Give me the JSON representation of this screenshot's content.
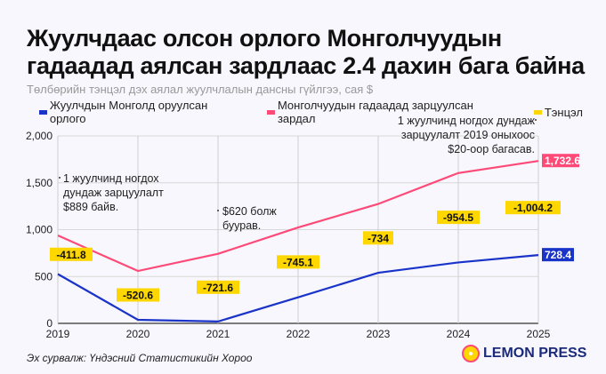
{
  "title": "Жуулчдаас олсон орлого Монголчуудын гадаадад аялсан зардлаас 2.4 дахин бага байна",
  "subtitle": "Төлбөрийн тэнцэл дэх аялал жуулчлалын дансны гүйлгээ, сая $",
  "source": "Эх сурвалж: Үндэсний Статистикийн Хороо",
  "logo": "LEMON PRESS",
  "chart_data": {
    "type": "line",
    "x": [
      "2019",
      "2020",
      "2021",
      "2022",
      "2023",
      "2024",
      "2025"
    ],
    "ylim": [
      0,
      2000
    ],
    "yticks": [
      "0",
      "500",
      "1,000",
      "1,500",
      "2,000"
    ],
    "grid": true,
    "legend_placement": "top",
    "series": [
      {
        "name": "Жуулчдын Монголд оруулсан орлого",
        "color": "#1a33c9",
        "values": [
          526,
          38,
          20,
          278,
          540,
          650,
          728.4
        ],
        "end_label": "728.4"
      },
      {
        "name": "Монголчуудын гадаадад зарцуулсан зардал",
        "color": "#ff4a78",
        "values": [
          938,
          559,
          742,
          1023,
          1274,
          1604,
          1732.6
        ],
        "end_label": "1,732.6"
      },
      {
        "name": "Тэнцэл",
        "color": "#ffd700",
        "values": [
          -411.8,
          -520.6,
          -721.6,
          -745.1,
          -734,
          -954.5,
          -1004.2
        ],
        "labels": [
          "-411.8",
          "-520.6",
          "-721.6",
          "-745.1",
          "-734",
          "-954.5",
          "-1,004.2"
        ]
      }
    ],
    "annotations": [
      {
        "x": "2019",
        "lines": [
          "1 жуулчинд ногдох",
          "дундаж зарцуулалт",
          "$889 байв."
        ]
      },
      {
        "x": "2021",
        "lines": [
          "$620 болж",
          "буурав."
        ]
      },
      {
        "x": "2025",
        "lines": [
          "1 жуулчинд ногдох дундаж",
          "зарцуулалт 2019 оныхоос",
          "$20-оор багасав."
        ]
      }
    ]
  }
}
